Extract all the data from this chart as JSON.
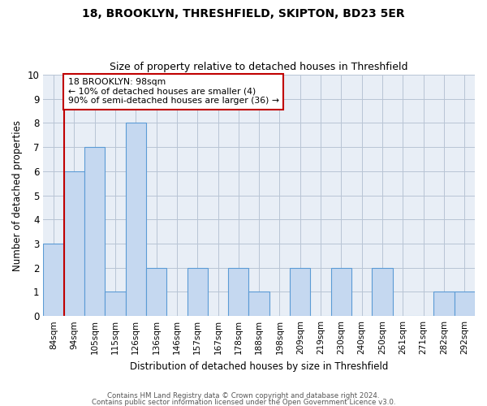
{
  "title1": "18, BROOKLYN, THRESHFIELD, SKIPTON, BD23 5ER",
  "title2": "Size of property relative to detached houses in Threshfield",
  "xlabel": "Distribution of detached houses by size in Threshfield",
  "ylabel": "Number of detached properties",
  "categories": [
    "84sqm",
    "94sqm",
    "105sqm",
    "115sqm",
    "126sqm",
    "136sqm",
    "146sqm",
    "157sqm",
    "167sqm",
    "178sqm",
    "188sqm",
    "198sqm",
    "209sqm",
    "219sqm",
    "230sqm",
    "240sqm",
    "250sqm",
    "261sqm",
    "271sqm",
    "282sqm",
    "292sqm"
  ],
  "values": [
    3,
    6,
    7,
    1,
    8,
    2,
    0,
    2,
    0,
    2,
    1,
    0,
    2,
    0,
    2,
    0,
    2,
    0,
    0,
    1,
    1
  ],
  "bar_color": "#c5d8f0",
  "bar_edge_color": "#5b9bd5",
  "vline_color": "#c00000",
  "annotation_text": "18 BROOKLYN: 98sqm\n← 10% of detached houses are smaller (4)\n90% of semi-detached houses are larger (36) →",
  "annotation_box_color": "#ffffff",
  "annotation_box_edge": "#c00000",
  "ylim": [
    0,
    10
  ],
  "yticks": [
    0,
    1,
    2,
    3,
    4,
    5,
    6,
    7,
    8,
    9,
    10
  ],
  "footer1": "Contains HM Land Registry data © Crown copyright and database right 2024.",
  "footer2": "Contains public sector information licensed under the Open Government Licence v3.0.",
  "grid_color": "#b8c4d4",
  "bg_color": "#e8eef6"
}
